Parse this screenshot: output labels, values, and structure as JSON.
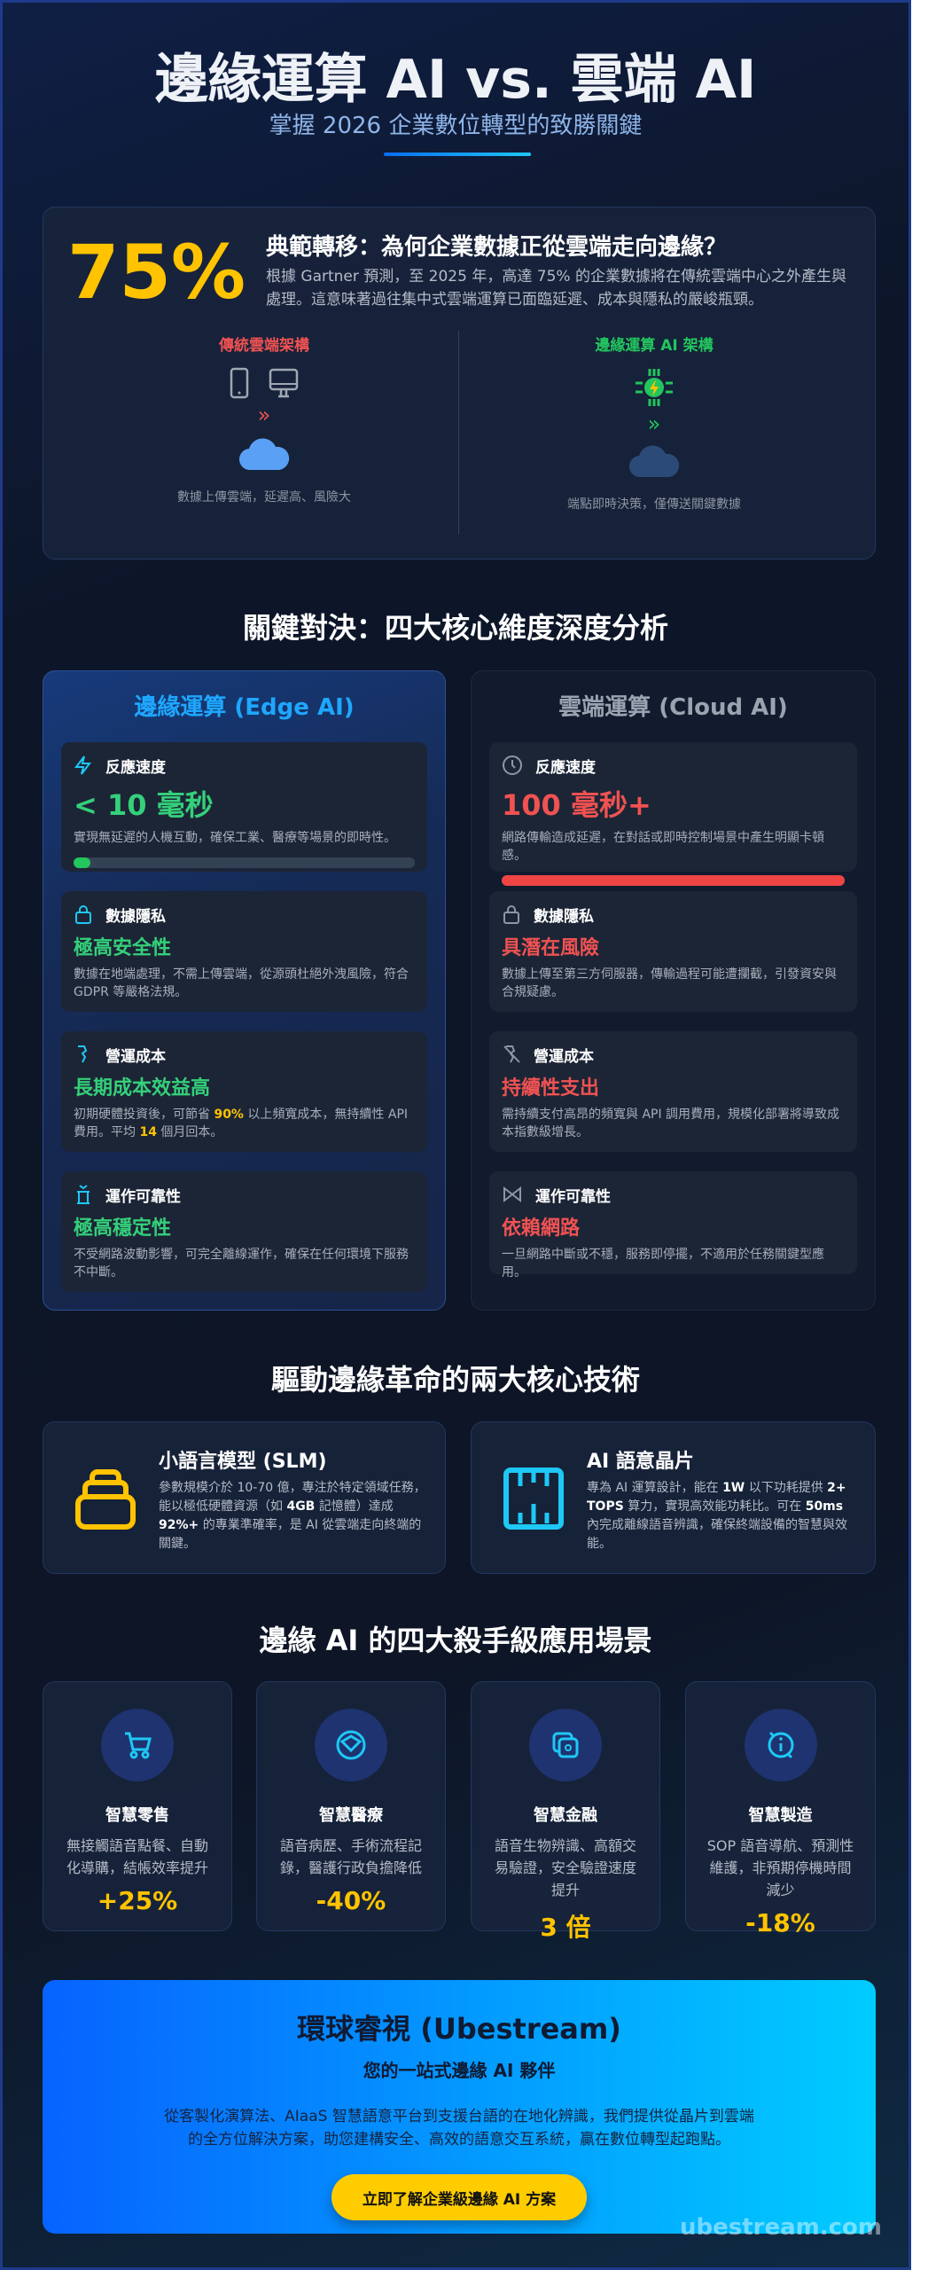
{
  "header": {
    "title": "邊緣運算 AI vs. 雲端 AI",
    "subtitle": "掌握 2026 企業數位轉型的致勝關鍵"
  },
  "intro": {
    "stat": "75%",
    "heading": "典範轉移：為何企業數據正從雲端走向邊緣？",
    "body": "根據 Gartner 預測，至 2025 年，高達 75% 的企業數據將在傳統雲端中心之外產生與處理。這意味著過往集中式雲端運算已面臨延遲、成本與隱私的嚴峻瓶頸。",
    "left": {
      "title": "傳統雲端架構",
      "caption": "數據上傳雲端，延遲高、風險大",
      "color": "#f05252"
    },
    "right": {
      "title": "邊緣運算 AI 架構",
      "caption": "端點即時決策，僅傳送關鍵數據",
      "color": "#22c55e"
    }
  },
  "compare": {
    "heading": "關鍵對決：四大核心維度深度分析",
    "edge": {
      "title": "邊緣運算 (Edge AI)",
      "items": [
        {
          "icon": "lightning-icon",
          "label": "反應速度",
          "value": "< 10 毫秒",
          "desc": "實現無延遲的人機互動，確保工業、醫療等場景的即時性。",
          "latency_bar_fill": 0.05
        },
        {
          "icon": "lock-icon",
          "label": "數據隱私",
          "value": "極高安全性",
          "desc": "數據在地端處理，不需上傳雲端，從源頭杜絕外洩風險，符合 GDPR 等嚴格法規。"
        },
        {
          "icon": "piggy-bank-icon",
          "label": "營運成本",
          "value": "長期成本效益高",
          "desc_parts": [
            "初期硬體投資後，可節省 ",
            "90%",
            " 以上頻寬成本，無持續性 API 費用。平均 ",
            "14",
            " 個月回本。"
          ]
        },
        {
          "icon": "server-icon",
          "label": "運作可靠性",
          "value": "極高穩定性",
          "desc": "不受網路波動影響，可完全離線運作，確保在任何環境下服務不中斷。"
        }
      ]
    },
    "cloud": {
      "title": "雲端運算 (Cloud AI)",
      "items": [
        {
          "icon": "clock-icon",
          "label": "反應速度",
          "value": "100 毫秒+",
          "desc": "網路傳輸造成延遲，在對話或即時控制場景中產生明顯卡頓感。",
          "latency_bar_fill": 1.0
        },
        {
          "icon": "lock-icon",
          "label": "數據隱私",
          "value": "具潛在風險",
          "desc": "數據上傳至第三方伺服器，傳輸過程可能遭攔截，引發資安與合規疑慮。"
        },
        {
          "icon": "money-off-icon",
          "label": "營運成本",
          "value": "持續性支出",
          "desc": "需持續支付高昂的頻寬與 API 調用費用，規模化部署將導致成本指數級增長。"
        },
        {
          "icon": "network-icon",
          "label": "運作可靠性",
          "value": "依賴網路",
          "desc": "一旦網路中斷或不穩，服務即停擺，不適用於任務關鍵型應用。"
        }
      ]
    },
    "colors": {
      "edge_accent": "#1ea7ff",
      "good": "#34d07a",
      "bad": "#f05252"
    }
  },
  "tech": {
    "heading": "驅動邊緣革命的兩大核心技術",
    "items": [
      {
        "icon": "layers-icon",
        "title": "小語言模型 (SLM)",
        "parts": [
          "參數規模介於 10-70 億，專注於特定領域任務，能以極低硬體資源（如 ",
          "4GB",
          " 記憶體）達成 ",
          "92%+",
          " 的專業準確率，是 AI 從雲端走向終端的關鍵。"
        ]
      },
      {
        "icon": "chip-icon",
        "title": "AI 語意晶片",
        "parts": [
          "專為 AI 運算設計，能在 ",
          "1W",
          " 以下功耗提供 ",
          "2+ TOPS",
          " 算力，實現高效能功耗比。可在 ",
          "50ms",
          " 內完成離線語音辨識，確保終端設備的智慧與效能。"
        ]
      }
    ]
  },
  "scenarios": {
    "heading": "邊緣 AI 的四大殺手級應用場景",
    "items": [
      {
        "icon": "cart-icon",
        "title": "智慧零售",
        "desc": "無接觸語音點餐、自動化導購，結帳效率提升",
        "stat": "+25%"
      },
      {
        "icon": "medical-icon",
        "title": "智慧醫療",
        "desc": "語音病歷、手術流程記錄，醫護行政負擔降低",
        "stat": "-40%"
      },
      {
        "icon": "finance-icon",
        "title": "智慧金融",
        "desc": "語音生物辨識、高額交易驗證，安全驗證速度提升",
        "stat": "3 倍"
      },
      {
        "icon": "factory-icon",
        "title": "智慧製造",
        "desc": "SOP 語音導航、預測性維護，非預期停機時間減少",
        "stat": "-18%"
      }
    ]
  },
  "cta": {
    "title": "環球睿視 (Ubestream)",
    "subtitle": "您的一站式邊緣 AI 夥伴",
    "body": "從客製化演算法、AIaaS 智慧語意平台到支援台語的在地化辨識，我們提供從晶片到雲端的全方位解決方案，助您建構安全、高效的語意交互系統，贏在數位轉型起跑點。",
    "button": "立即了解企業級邊緣 AI 方案"
  },
  "watermark": "ubestream.com"
}
